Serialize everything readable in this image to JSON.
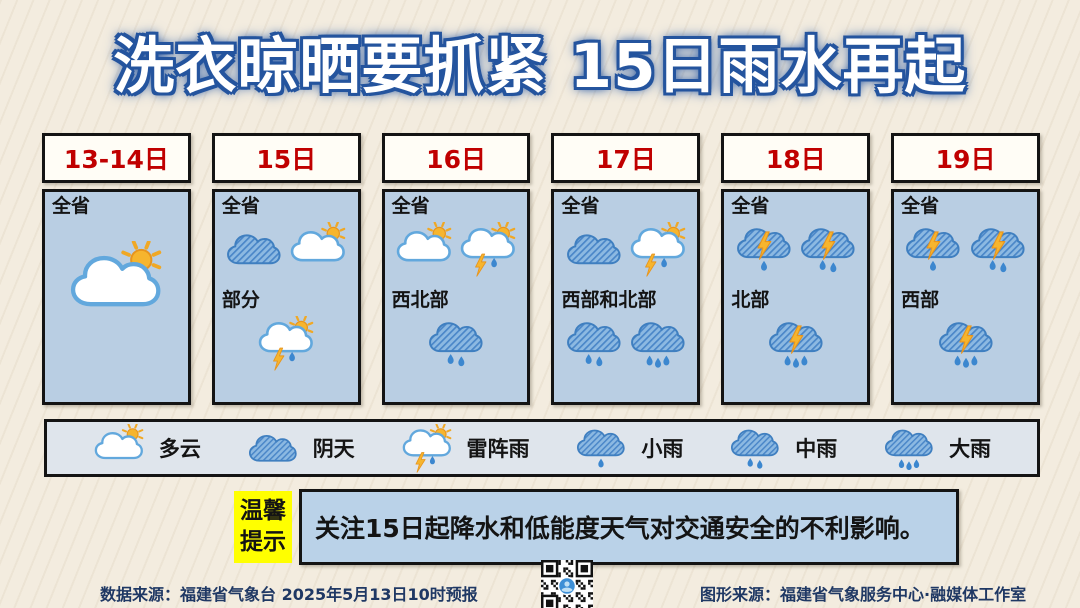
{
  "title": "洗衣晾晒要抓紧 15日雨水再起",
  "cards": [
    {
      "date": "13-14日",
      "sections": [
        {
          "region": "全省",
          "icons": [
            "partly-cloudy"
          ]
        }
      ]
    },
    {
      "date": "15日",
      "sections": [
        {
          "region": "全省",
          "icons": [
            "overcast",
            "partly-cloudy"
          ]
        },
        {
          "region": "部分",
          "icons": [
            "thunder-sun"
          ]
        }
      ]
    },
    {
      "date": "16日",
      "sections": [
        {
          "region": "全省",
          "icons": [
            "partly-cloudy",
            "thunder-sun"
          ]
        },
        {
          "region": "西北部",
          "icons": [
            "rain-2"
          ]
        }
      ]
    },
    {
      "date": "17日",
      "sections": [
        {
          "region": "全省",
          "icons": [
            "overcast",
            "thunder-sun"
          ]
        },
        {
          "region": "西部和北部",
          "icons": [
            "rain-2",
            "rain-3"
          ]
        }
      ]
    },
    {
      "date": "18日",
      "sections": [
        {
          "region": "全省",
          "icons": [
            "thunder-rain-1",
            "thunder-rain-2"
          ]
        },
        {
          "region": "北部",
          "icons": [
            "thunder-rain-3"
          ]
        }
      ]
    },
    {
      "date": "19日",
      "sections": [
        {
          "region": "全省",
          "icons": [
            "thunder-rain-1",
            "thunder-rain-2"
          ]
        },
        {
          "region": "西部",
          "icons": [
            "thunder-rain-3"
          ]
        }
      ]
    }
  ],
  "legend": [
    {
      "icon": "partly-cloudy",
      "label": "多云"
    },
    {
      "icon": "overcast",
      "label": "阴天"
    },
    {
      "icon": "thunder-sun",
      "label": "雷阵雨"
    },
    {
      "icon": "rain-1",
      "label": "小雨"
    },
    {
      "icon": "rain-2",
      "label": "中雨"
    },
    {
      "icon": "rain-3",
      "label": "大雨"
    }
  ],
  "tip": {
    "badge": "温馨提示",
    "text": "关注15日起降水和低能度天气对交通安全的不利影响。"
  },
  "footer": {
    "left": "数据来源：福建省气象台  2025年5月13日10时预报",
    "right": "图形来源：福建省气象服务中心·融媒体工作室",
    "qr_icon": "qr-code"
  },
  "colors": {
    "background_cream": "#f3ecdf",
    "title_fill": "#ffffff",
    "title_outline": "#24549e",
    "date_red": "#c00000",
    "card_body_blue": "#b9cee3",
    "legend_gray_blue": "#dfe5ec",
    "tip_yellow": "#ffff00",
    "tip_box_blue": "#bad2e8",
    "footer_navy": "#1f3864",
    "cloud_blue": "#4a86c8",
    "sun_yellow": "#f6b52e"
  }
}
